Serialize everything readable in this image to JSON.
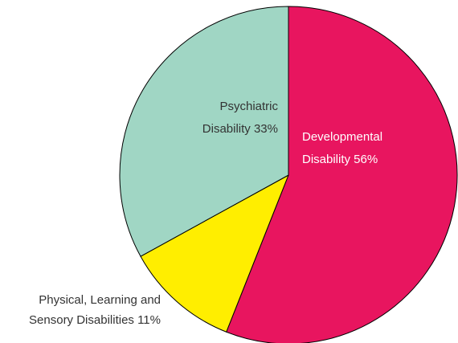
{
  "chart_data": {
    "type": "pie",
    "slices": [
      {
        "label_lines": [
          "Developmental",
          "Disability 56%"
        ],
        "value": 56,
        "color": "#E8155F",
        "label_color": "#ffffff"
      },
      {
        "label_lines": [
          "Physical, Learning and",
          "Sensory Disabilities 11%"
        ],
        "value": 11,
        "color": "#FFEE00",
        "label_color": "#333333"
      },
      {
        "label_lines": [
          "Psychiatric",
          "Disability 33%"
        ],
        "value": 33,
        "color": "#A0D6C4",
        "label_color": "#333333"
      }
    ]
  }
}
